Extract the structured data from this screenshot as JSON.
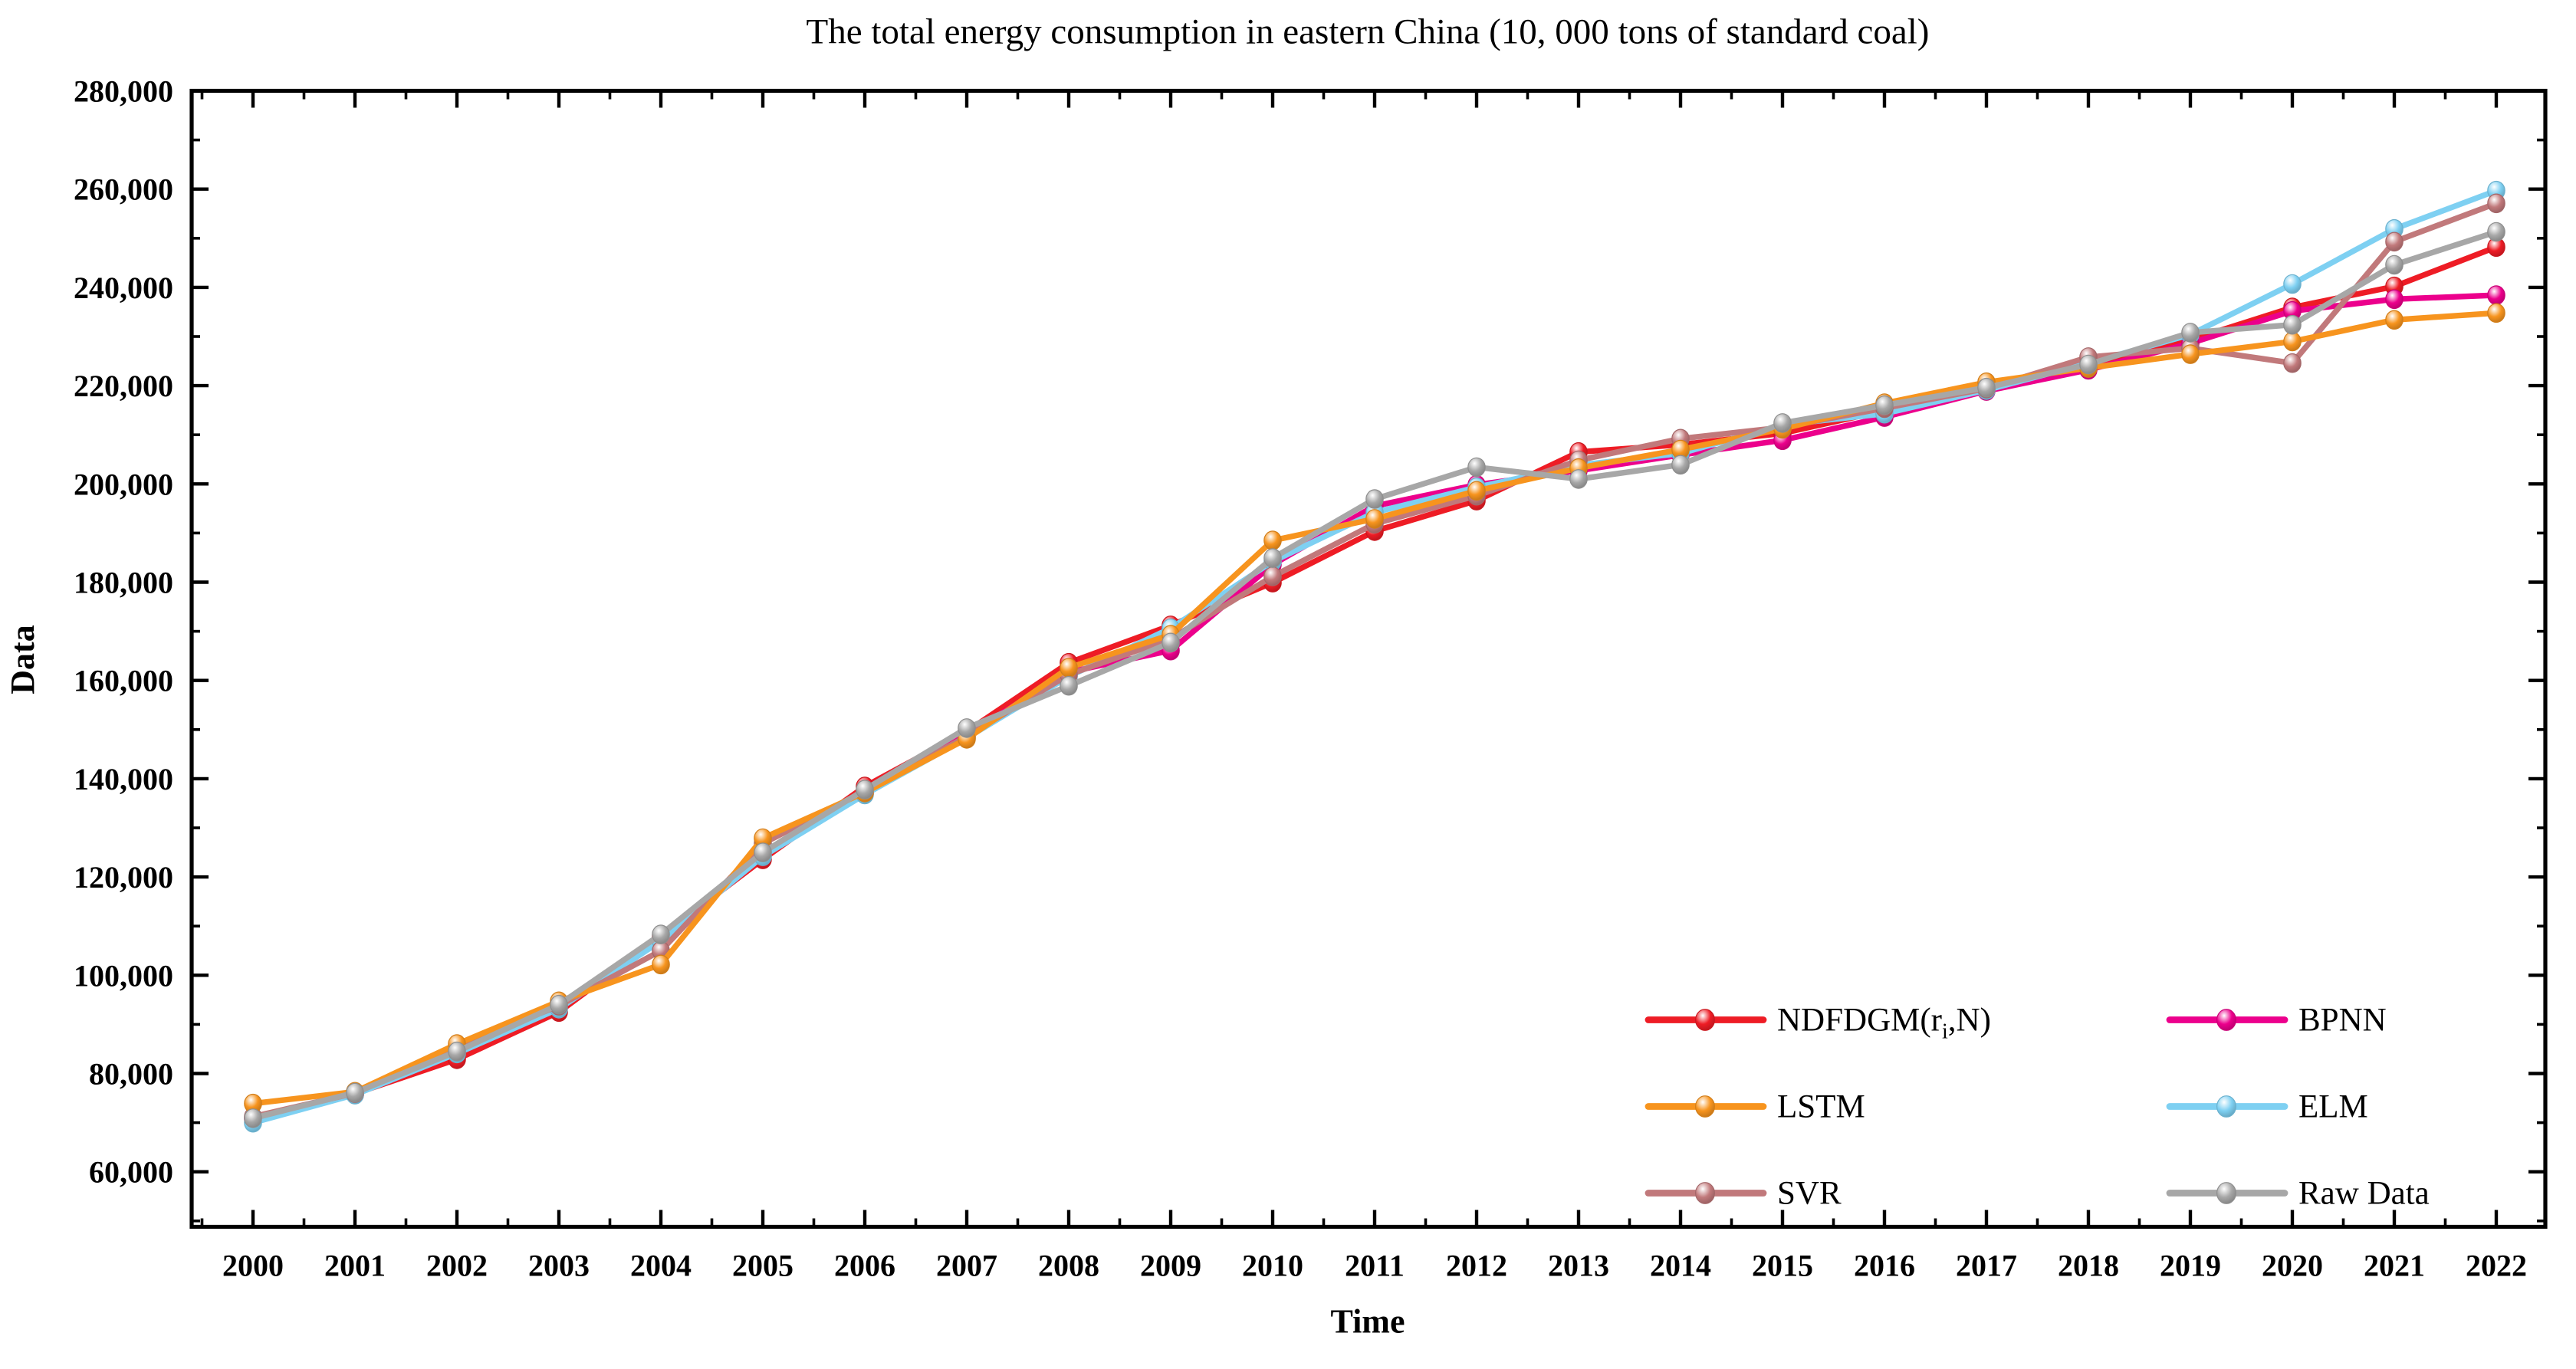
{
  "chart_data": {
    "type": "line",
    "title": "The total energy consumption in eastern China (10, 000 tons of standard coal)",
    "xlabel": "Time",
    "ylabel": "Data",
    "grid": false,
    "legend_position": "lower-right-inside",
    "x_categories": [
      "2000",
      "2001",
      "2002",
      "2003",
      "2004",
      "2005",
      "2006",
      "2007",
      "2008",
      "2009",
      "2010",
      "2011",
      "2012",
      "2013",
      "2014",
      "2015",
      "2016",
      "2017",
      "2018",
      "2019",
      "2020",
      "2021",
      "2022"
    ],
    "ylim": [
      48800,
      280000
    ],
    "y_major_ticks": [
      60000,
      80000,
      100000,
      120000,
      140000,
      160000,
      180000,
      200000,
      220000,
      240000,
      260000,
      280000
    ],
    "y_tick_labels": [
      "60,000",
      "80,000",
      "100,000",
      "120,000",
      "140,000",
      "160,000",
      "180,000",
      "200,000",
      "220,000",
      "240,000",
      "260,000",
      "280,000"
    ],
    "series": [
      {
        "key": "ndfdgm",
        "name": "NDFDGM(ri,N)",
        "color": "#EE1C25",
        "values": [
          71000,
          75900,
          82900,
          92500,
          107900,
          123600,
          138400,
          149600,
          163600,
          171200,
          179900,
          190400,
          196600,
          206500,
          208000,
          210300,
          214900,
          219200,
          224000,
          229300,
          235900,
          240200,
          248200
        ]
      },
      {
        "key": "lstm",
        "name": "LSTM",
        "color": "#F7941E",
        "values": [
          73900,
          76300,
          86000,
          94700,
          102200,
          127900,
          137200,
          148100,
          162600,
          169300,
          188500,
          192900,
          198600,
          203200,
          207000,
          211200,
          216400,
          220700,
          223600,
          226400,
          229000,
          233400,
          234800
        ]
      },
      {
        "key": "svr",
        "name": "SVR",
        "color": "#C1797B",
        "values": [
          71200,
          76000,
          85400,
          93800,
          105000,
          126800,
          137500,
          148600,
          161200,
          168500,
          181200,
          191900,
          197600,
          204800,
          209200,
          211500,
          215400,
          219400,
          225800,
          227600,
          224600,
          249300,
          257100
        ]
      },
      {
        "key": "bpnn",
        "name": "BPNN",
        "color": "#EC008C",
        "values": [
          70800,
          75800,
          84700,
          93500,
          107300,
          124500,
          137000,
          149000,
          161700,
          166100,
          183600,
          195500,
          199800,
          202700,
          205900,
          208900,
          213600,
          218900,
          223200,
          228600,
          235200,
          237600,
          238400
        ]
      },
      {
        "key": "elm",
        "name": "ELM",
        "color": "#7ED0F2",
        "values": [
          70000,
          75700,
          84100,
          93200,
          107000,
          124200,
          136800,
          148300,
          160800,
          170600,
          184200,
          194200,
          199300,
          203800,
          206200,
          212000,
          214300,
          219100,
          224600,
          230400,
          240700,
          251900,
          259700
        ]
      },
      {
        "key": "raw",
        "name": "Raw Data",
        "color": "#A7A7A7",
        "values": [
          70900,
          76100,
          84500,
          94000,
          108300,
          125000,
          137800,
          150300,
          158900,
          167700,
          184900,
          196900,
          203400,
          201000,
          203900,
          212400,
          216000,
          219600,
          224300,
          230800,
          232400,
          244600,
          251300
        ]
      }
    ],
    "draw_order": [
      "ndfdgm",
      "bpnn",
      "elm",
      "svr",
      "lstm",
      "raw"
    ],
    "legend": [
      {
        "series": "ndfdgm",
        "col": 0,
        "row": 0,
        "label_parts": [
          {
            "t": "NDFDGM(r"
          },
          {
            "t": "i",
            "sub": true
          },
          {
            "t": ",N)"
          }
        ]
      },
      {
        "series": "lstm",
        "col": 0,
        "row": 1,
        "label_parts": [
          {
            "t": "LSTM"
          }
        ]
      },
      {
        "series": "svr",
        "col": 0,
        "row": 2,
        "label_parts": [
          {
            "t": "SVR"
          }
        ]
      },
      {
        "series": "bpnn",
        "col": 1,
        "row": 0,
        "label_parts": [
          {
            "t": "BPNN"
          }
        ]
      },
      {
        "series": "elm",
        "col": 1,
        "row": 1,
        "label_parts": [
          {
            "t": "ELM"
          }
        ]
      },
      {
        "series": "raw",
        "col": 1,
        "row": 2,
        "label_parts": [
          {
            "t": "Raw Data"
          }
        ]
      }
    ]
  }
}
